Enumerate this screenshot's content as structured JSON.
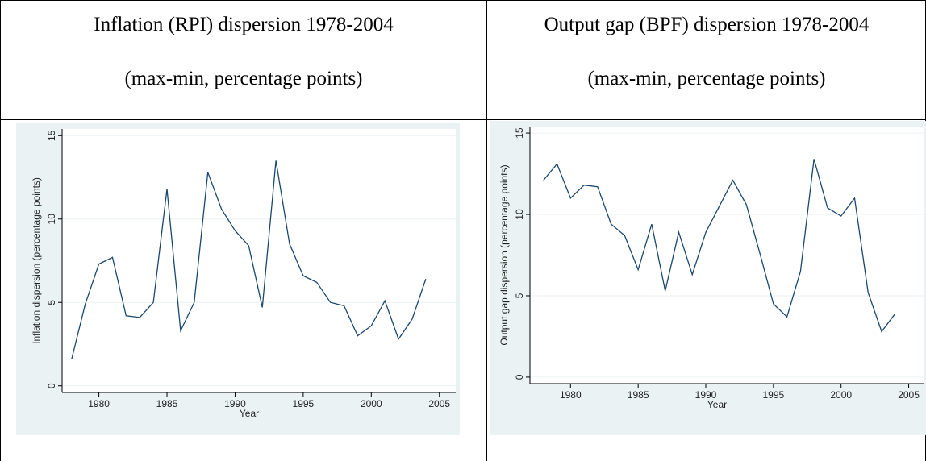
{
  "table": {
    "headers": [
      [
        "Inflation (RPI) dispersion 1978-2004",
        "(max-min, percentage points)"
      ],
      [
        "Output gap (BPF) dispersion 1978-2004",
        "(max-min, percentage points)"
      ]
    ]
  },
  "chart_data": [
    {
      "type": "line",
      "x_label": "Year",
      "y_label": "Inflation dispersion (percentage points)",
      "x": [
        1978,
        1979,
        1980,
        1981,
        1982,
        1983,
        1984,
        1985,
        1986,
        1987,
        1988,
        1989,
        1990,
        1991,
        1992,
        1993,
        1994,
        1995,
        1996,
        1997,
        1998,
        1999,
        2000,
        2001,
        2002,
        2003,
        2004
      ],
      "values": [
        1.6,
        4.9,
        7.3,
        7.7,
        4.2,
        4.1,
        5.0,
        11.8,
        3.3,
        5.0,
        12.8,
        10.6,
        9.3,
        8.4,
        4.7,
        13.5,
        8.5,
        6.6,
        6.2,
        5.0,
        4.8,
        3.0,
        3.6,
        5.1,
        2.8,
        4.0,
        6.4
      ],
      "color": "#1a476f",
      "xlim": [
        1977.3,
        2006.2
      ],
      "ylim": [
        -0.4,
        15.4
      ],
      "xticks": [
        1980,
        1985,
        1990,
        1995,
        2000,
        2005
      ],
      "yticks": [
        0,
        5,
        10,
        15
      ],
      "grid": true
    },
    {
      "type": "line",
      "x_label": "Year",
      "y_label": "Output gap dispersion (percentage points)",
      "x": [
        1978,
        1979,
        1980,
        1981,
        1982,
        1983,
        1984,
        1985,
        1986,
        1987,
        1988,
        1989,
        1990,
        1991,
        1992,
        1993,
        1994,
        1995,
        1996,
        1997,
        1998,
        1999,
        2000,
        2001,
        2002,
        2003,
        2004
      ],
      "values": [
        12.1,
        13.1,
        11.0,
        11.8,
        11.7,
        9.4,
        8.7,
        6.6,
        9.4,
        5.3,
        8.9,
        6.3,
        8.9,
        10.5,
        12.1,
        10.6,
        7.6,
        4.5,
        3.7,
        6.5,
        13.4,
        10.4,
        9.9,
        11.0,
        5.2,
        2.8,
        3.9
      ],
      "color": "#1a476f",
      "xlim": [
        1977.0,
        2006.1
      ],
      "ylim": [
        -0.4,
        15.4
      ],
      "xticks": [
        1980,
        1985,
        1990,
        1995,
        2000,
        2005
      ],
      "yticks": [
        0,
        5,
        10,
        15
      ],
      "grid": true
    }
  ]
}
